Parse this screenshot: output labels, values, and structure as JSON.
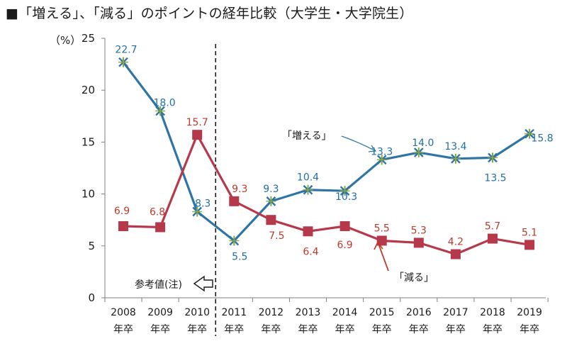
{
  "title": "■「増える」、「減る」のポイントの経年比較（大学生・大学院生）",
  "chart_data": {
    "type": "line",
    "ylabel": "（%）",
    "ylim": [
      0,
      25
    ],
    "yticks": [
      0,
      5,
      10,
      15,
      20,
      25
    ],
    "categories": [
      [
        "2008",
        "年卒"
      ],
      [
        "2009",
        "年卒"
      ],
      [
        "2010",
        "年卒"
      ],
      [
        "2011",
        "年卒"
      ],
      [
        "2012",
        "年卒"
      ],
      [
        "2013",
        "年卒"
      ],
      [
        "2014",
        "年卒"
      ],
      [
        "2015",
        "年卒"
      ],
      [
        "2016",
        "年卒"
      ],
      [
        "2017",
        "年卒"
      ],
      [
        "2018",
        "年卒"
      ],
      [
        "2019",
        "年卒"
      ]
    ],
    "series": [
      {
        "name": "「増える」",
        "color": "#2e75a6",
        "marker": "star",
        "values": [
          22.7,
          18.0,
          8.3,
          5.5,
          9.3,
          10.4,
          10.3,
          13.3,
          14.0,
          13.4,
          13.5,
          15.8
        ],
        "labels": [
          "22.7",
          "18.0",
          "8.3",
          "5.5",
          "9.3",
          "10.4",
          "10.3",
          "13.3",
          "14.0",
          "13.4",
          "13.5",
          "15.8"
        ]
      },
      {
        "name": "「減る」",
        "color": "#b5394a",
        "marker": "square",
        "values": [
          6.9,
          6.8,
          15.7,
          9.3,
          7.5,
          6.4,
          6.9,
          5.5,
          5.3,
          4.2,
          5.7,
          5.1
        ],
        "labels": [
          "6.9",
          "6.8",
          "15.7",
          "9.3",
          "7.5",
          "6.4",
          "6.9",
          "5.5",
          "5.3",
          "4.2",
          "5.7",
          "5.1"
        ]
      }
    ],
    "reference_note": "参考値(注)"
  }
}
